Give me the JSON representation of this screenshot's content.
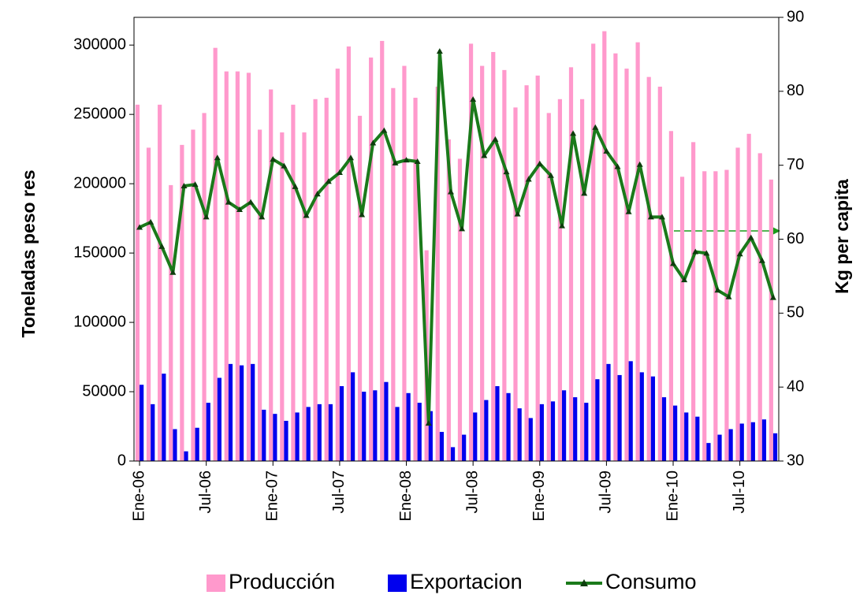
{
  "chart_data": {
    "type": "bar_line",
    "categories": [
      "Ene-06",
      null,
      null,
      null,
      null,
      null,
      "Jul-06",
      null,
      null,
      null,
      null,
      null,
      "Ene-07",
      null,
      null,
      null,
      null,
      null,
      "Jul-07",
      null,
      null,
      null,
      null,
      null,
      "Ene-08",
      null,
      null,
      null,
      null,
      null,
      "Jul-08",
      null,
      null,
      null,
      null,
      null,
      "Ene-09",
      null,
      null,
      null,
      null,
      null,
      "Jul-09",
      null,
      null,
      null,
      null,
      null,
      "Ene-10",
      null,
      null,
      null,
      null,
      null,
      "Jul-10",
      null,
      null,
      null
    ],
    "series": [
      {
        "name": "Producción",
        "color": "#ff99cc",
        "type": "bar",
        "values": [
          257000,
          226000,
          257000,
          199000,
          228000,
          239000,
          251000,
          298000,
          281000,
          281000,
          280000,
          239000,
          268000,
          237000,
          257000,
          237000,
          261000,
          262000,
          283000,
          299000,
          249000,
          291000,
          303000,
          269000,
          285000,
          262000,
          152000,
          270000,
          232000,
          218000,
          301000,
          285000,
          295000,
          282000,
          255000,
          271000,
          278000,
          251000,
          261000,
          284000,
          261000,
          301000,
          310000,
          294000,
          283000,
          302000,
          277000,
          270000,
          238000,
          205000,
          230000,
          209000,
          209000,
          210000,
          226000,
          236000,
          222000,
          203000
        ]
      },
      {
        "name": "Exportacion",
        "color": "#0000ee",
        "type": "bar",
        "values": [
          55000,
          41000,
          63000,
          23000,
          7000,
          24000,
          42000,
          60000,
          70000,
          69000,
          70000,
          37000,
          34000,
          29000,
          35000,
          39000,
          41000,
          41000,
          54000,
          64000,
          50000,
          51000,
          57000,
          39000,
          49000,
          42000,
          36000,
          21000,
          10000,
          19000,
          35000,
          44000,
          54000,
          49000,
          38000,
          31000,
          41000,
          43000,
          51000,
          46000,
          42000,
          59000,
          70000,
          62000,
          72000,
          64000,
          61000,
          46000,
          40000,
          35000,
          32000,
          13000,
          19000,
          23000,
          27000,
          28000,
          30000,
          20000
        ]
      },
      {
        "name": "Consumo",
        "color": "#1a7a1a",
        "type": "line",
        "axis": "y2",
        "values": [
          61.6,
          62.3,
          59.0,
          55.5,
          67.2,
          67.4,
          63.0,
          71.0,
          65.0,
          64.0,
          65.0,
          63.0,
          70.8,
          69.9,
          67.1,
          63.2,
          66.1,
          67.8,
          69.0,
          71.0,
          63.3,
          73.0,
          74.7,
          70.3,
          70.7,
          70.5,
          35.1,
          85.4,
          66.4,
          61.4,
          78.9,
          71.3,
          73.5,
          69.1,
          63.4,
          68.1,
          70.2,
          68.6,
          61.8,
          74.3,
          66.2,
          75.1,
          71.9,
          69.8,
          63.7,
          70.1,
          63.0,
          63.0,
          56.7,
          54.5,
          58.3,
          58.1,
          53.1,
          52.2,
          58.0,
          60.2,
          57.1,
          52.1
        ]
      }
    ],
    "ylabel": "Toneladas peso res",
    "y2label": "Kg  per capita",
    "ylim": [
      0,
      320000
    ],
    "yticks": [
      0,
      50000,
      100000,
      150000,
      200000,
      250000,
      300000
    ],
    "y2lim": [
      30,
      90
    ],
    "y2ticks": [
      30,
      40,
      50,
      60,
      70,
      80,
      90
    ],
    "legend": "bottom"
  }
}
